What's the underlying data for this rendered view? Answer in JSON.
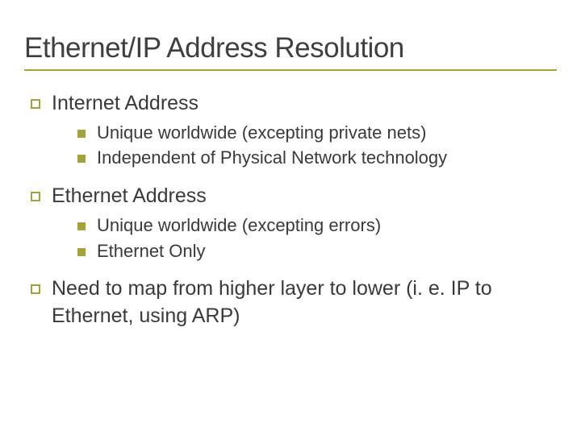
{
  "colors": {
    "accent": "#a3a33c",
    "title_text": "#3f3f3f",
    "body_text": "#3a3a3a",
    "background": "#ffffff"
  },
  "title": "Ethernet/IP Address Resolution",
  "items": [
    {
      "label": "Internet Address",
      "sub": [
        "Unique worldwide (excepting private nets)",
        "Independent of Physical Network technology"
      ]
    },
    {
      "label": "Ethernet Address",
      "sub": [
        "Unique worldwide (excepting errors)",
        "Ethernet Only"
      ]
    },
    {
      "label": "Need to map from higher layer to lower (i. e. IP to Ethernet, using ARP)",
      "sub": []
    }
  ]
}
